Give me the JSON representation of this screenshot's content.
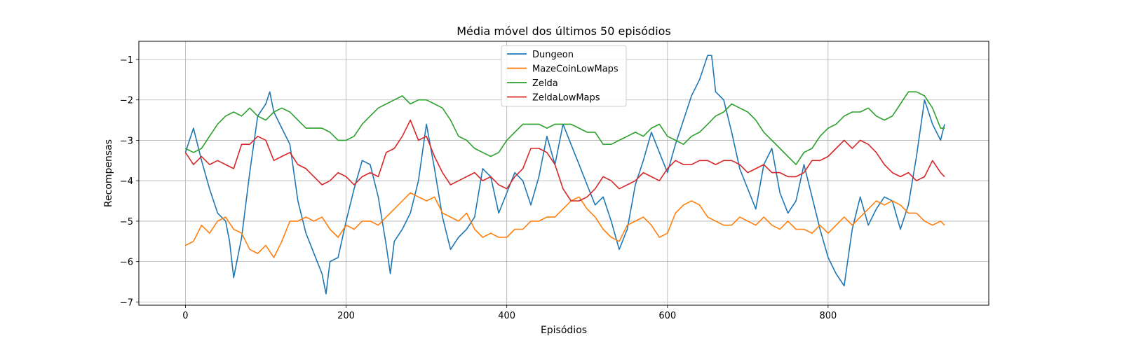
{
  "chart_data": {
    "type": "line",
    "title": "Média móvel dos últimos 50 episódios",
    "xlabel": "Episódios",
    "ylabel": "Recompensas",
    "xlim": [
      -58,
      1000
    ],
    "ylim": [
      -7.08,
      -0.55
    ],
    "xticks": [
      0,
      200,
      400,
      600,
      800
    ],
    "yticks": [
      -7,
      -6,
      -5,
      -4,
      -3,
      -2,
      -1
    ],
    "grid": true,
    "legend_position": "top-center",
    "series": [
      {
        "name": "Dungeon",
        "color": "#1f77b4",
        "x": [
          0,
          10,
          20,
          30,
          40,
          50,
          55,
          60,
          70,
          80,
          90,
          100,
          105,
          110,
          120,
          130,
          140,
          150,
          160,
          170,
          175,
          180,
          190,
          200,
          210,
          220,
          230,
          240,
          250,
          255,
          260,
          270,
          280,
          290,
          300,
          310,
          320,
          330,
          340,
          350,
          360,
          370,
          380,
          390,
          400,
          410,
          420,
          430,
          440,
          450,
          460,
          470,
          480,
          490,
          500,
          510,
          520,
          530,
          540,
          550,
          560,
          570,
          580,
          590,
          600,
          610,
          620,
          630,
          640,
          650,
          655,
          660,
          670,
          680,
          690,
          700,
          710,
          720,
          730,
          740,
          750,
          760,
          770,
          780,
          790,
          800,
          810,
          820,
          830,
          840,
          850,
          860,
          870,
          880,
          890,
          900,
          910,
          920,
          930,
          940,
          945
        ],
        "values": [
          -3.3,
          -2.7,
          -3.5,
          -4.2,
          -4.8,
          -5.0,
          -5.5,
          -6.4,
          -5.4,
          -3.8,
          -2.4,
          -2.1,
          -1.8,
          -2.3,
          -2.7,
          -3.1,
          -4.5,
          -5.3,
          -5.8,
          -6.3,
          -6.8,
          -6.0,
          -5.9,
          -5.0,
          -4.2,
          -3.5,
          -3.6,
          -4.4,
          -5.6,
          -6.3,
          -5.5,
          -5.2,
          -4.8,
          -4.0,
          -2.6,
          -3.7,
          -4.9,
          -5.7,
          -5.4,
          -5.2,
          -4.9,
          -3.7,
          -3.9,
          -4.8,
          -4.3,
          -3.8,
          -4.0,
          -4.6,
          -3.9,
          -2.9,
          -3.6,
          -2.6,
          -3.1,
          -3.6,
          -4.1,
          -4.6,
          -4.4,
          -5.0,
          -5.7,
          -5.2,
          -4.1,
          -3.5,
          -2.8,
          -3.3,
          -3.8,
          -3.1,
          -2.5,
          -1.9,
          -1.5,
          -0.9,
          -0.9,
          -1.8,
          -2.0,
          -2.8,
          -3.7,
          -4.2,
          -4.7,
          -3.6,
          -3.2,
          -4.3,
          -4.8,
          -4.5,
          -3.6,
          -4.4,
          -5.2,
          -5.9,
          -6.3,
          -6.6,
          -5.2,
          -4.4,
          -5.1,
          -4.7,
          -4.4,
          -4.5,
          -5.2,
          -4.6,
          -3.4,
          -2.0,
          -2.6,
          -3.0,
          -2.6
        ]
      },
      {
        "name": "MazeCoinLowMaps",
        "color": "#ff7f0e",
        "x": [
          0,
          10,
          20,
          30,
          40,
          50,
          60,
          70,
          80,
          90,
          100,
          110,
          120,
          130,
          140,
          150,
          160,
          170,
          180,
          190,
          200,
          210,
          220,
          230,
          240,
          250,
          260,
          270,
          280,
          290,
          300,
          310,
          320,
          330,
          340,
          350,
          360,
          370,
          380,
          390,
          400,
          410,
          420,
          430,
          440,
          450,
          460,
          470,
          480,
          490,
          500,
          510,
          520,
          530,
          540,
          550,
          560,
          570,
          580,
          590,
          600,
          610,
          620,
          630,
          640,
          650,
          660,
          670,
          680,
          690,
          700,
          710,
          720,
          730,
          740,
          750,
          760,
          770,
          780,
          790,
          800,
          810,
          820,
          830,
          840,
          850,
          860,
          870,
          880,
          890,
          900,
          910,
          920,
          930,
          940,
          945
        ],
        "values": [
          -5.6,
          -5.5,
          -5.1,
          -5.3,
          -5.0,
          -4.9,
          -5.2,
          -5.3,
          -5.7,
          -5.8,
          -5.6,
          -5.9,
          -5.5,
          -5.0,
          -5.0,
          -4.9,
          -5.0,
          -4.9,
          -5.2,
          -5.4,
          -5.1,
          -5.2,
          -5.0,
          -5.0,
          -5.1,
          -4.9,
          -4.7,
          -4.5,
          -4.3,
          -4.4,
          -4.5,
          -4.4,
          -4.8,
          -4.9,
          -5.0,
          -4.8,
          -5.2,
          -5.4,
          -5.3,
          -5.4,
          -5.4,
          -5.2,
          -5.2,
          -5.0,
          -5.0,
          -4.9,
          -4.9,
          -4.7,
          -4.5,
          -4.4,
          -4.7,
          -4.9,
          -5.2,
          -5.4,
          -5.5,
          -5.1,
          -5.0,
          -4.9,
          -5.1,
          -5.4,
          -5.3,
          -4.8,
          -4.6,
          -4.5,
          -4.6,
          -4.9,
          -5.0,
          -5.1,
          -5.1,
          -4.9,
          -5.0,
          -5.1,
          -4.9,
          -5.1,
          -5.2,
          -5.0,
          -5.2,
          -5.2,
          -5.3,
          -5.1,
          -5.3,
          -5.1,
          -4.9,
          -5.1,
          -4.9,
          -4.7,
          -4.5,
          -4.6,
          -4.5,
          -4.6,
          -4.8,
          -4.8,
          -5.0,
          -5.1,
          -5.0,
          -5.1
        ]
      },
      {
        "name": "Zelda",
        "color": "#2ca02c",
        "x": [
          0,
          10,
          20,
          30,
          40,
          50,
          60,
          70,
          80,
          90,
          100,
          110,
          120,
          130,
          140,
          150,
          160,
          170,
          180,
          190,
          200,
          210,
          220,
          230,
          240,
          250,
          260,
          270,
          280,
          290,
          300,
          310,
          320,
          330,
          340,
          350,
          360,
          370,
          380,
          390,
          400,
          410,
          420,
          430,
          440,
          450,
          460,
          470,
          480,
          490,
          500,
          510,
          520,
          530,
          540,
          550,
          560,
          570,
          580,
          590,
          600,
          610,
          620,
          630,
          640,
          650,
          660,
          670,
          680,
          690,
          700,
          710,
          720,
          730,
          740,
          750,
          760,
          770,
          780,
          790,
          800,
          810,
          820,
          830,
          840,
          850,
          860,
          870,
          880,
          890,
          900,
          910,
          920,
          930,
          940,
          945
        ],
        "values": [
          -3.2,
          -3.3,
          -3.2,
          -2.9,
          -2.6,
          -2.4,
          -2.3,
          -2.4,
          -2.2,
          -2.4,
          -2.5,
          -2.3,
          -2.2,
          -2.3,
          -2.5,
          -2.7,
          -2.7,
          -2.7,
          -2.8,
          -3.0,
          -3.0,
          -2.9,
          -2.6,
          -2.4,
          -2.2,
          -2.1,
          -2.0,
          -1.9,
          -2.1,
          -2.0,
          -2.0,
          -2.1,
          -2.2,
          -2.5,
          -2.9,
          -3.0,
          -3.2,
          -3.3,
          -3.4,
          -3.3,
          -3.0,
          -2.8,
          -2.6,
          -2.6,
          -2.6,
          -2.7,
          -2.6,
          -2.6,
          -2.6,
          -2.7,
          -2.8,
          -2.8,
          -3.1,
          -3.1,
          -3.0,
          -2.9,
          -2.8,
          -2.9,
          -2.7,
          -2.6,
          -2.9,
          -3.0,
          -3.1,
          -2.9,
          -2.8,
          -2.6,
          -2.4,
          -2.3,
          -2.1,
          -2.2,
          -2.3,
          -2.5,
          -2.8,
          -3.0,
          -3.2,
          -3.4,
          -3.6,
          -3.3,
          -3.2,
          -2.9,
          -2.7,
          -2.6,
          -2.4,
          -2.3,
          -2.3,
          -2.2,
          -2.4,
          -2.5,
          -2.4,
          -2.1,
          -1.8,
          -1.8,
          -1.9,
          -2.2,
          -2.7,
          -2.7
        ]
      },
      {
        "name": "ZeldaLowMaps",
        "color": "#d62728",
        "x": [
          0,
          10,
          20,
          30,
          40,
          50,
          60,
          70,
          80,
          90,
          100,
          110,
          120,
          130,
          140,
          150,
          160,
          170,
          180,
          190,
          200,
          210,
          220,
          230,
          240,
          250,
          260,
          270,
          280,
          290,
          300,
          310,
          320,
          330,
          340,
          350,
          360,
          370,
          380,
          390,
          400,
          410,
          420,
          430,
          440,
          450,
          460,
          470,
          480,
          490,
          500,
          510,
          520,
          530,
          540,
          550,
          560,
          570,
          580,
          590,
          600,
          610,
          620,
          630,
          640,
          650,
          660,
          670,
          680,
          690,
          700,
          710,
          720,
          730,
          740,
          750,
          760,
          770,
          780,
          790,
          800,
          810,
          820,
          830,
          840,
          850,
          860,
          870,
          880,
          890,
          900,
          910,
          920,
          930,
          940,
          945
        ],
        "values": [
          -3.3,
          -3.6,
          -3.4,
          -3.6,
          -3.5,
          -3.6,
          -3.7,
          -3.1,
          -3.1,
          -2.9,
          -3.0,
          -3.5,
          -3.4,
          -3.3,
          -3.6,
          -3.7,
          -3.9,
          -4.1,
          -4.0,
          -3.8,
          -3.9,
          -4.1,
          -3.9,
          -3.8,
          -3.9,
          -3.3,
          -3.2,
          -2.9,
          -2.5,
          -3.0,
          -2.9,
          -3.4,
          -3.8,
          -4.1,
          -4.0,
          -3.9,
          -3.8,
          -4.0,
          -3.9,
          -4.1,
          -4.2,
          -3.9,
          -3.7,
          -3.2,
          -3.2,
          -3.3,
          -3.6,
          -4.2,
          -4.5,
          -4.5,
          -4.4,
          -4.2,
          -3.9,
          -4.0,
          -4.2,
          -4.1,
          -4.0,
          -3.8,
          -3.9,
          -4.0,
          -3.7,
          -3.5,
          -3.6,
          -3.6,
          -3.5,
          -3.5,
          -3.6,
          -3.5,
          -3.5,
          -3.6,
          -3.8,
          -3.7,
          -3.6,
          -3.8,
          -3.8,
          -3.9,
          -3.9,
          -3.8,
          -3.5,
          -3.5,
          -3.4,
          -3.2,
          -3.0,
          -3.2,
          -3.0,
          -3.1,
          -3.3,
          -3.6,
          -3.8,
          -3.9,
          -3.8,
          -4.0,
          -3.9,
          -3.5,
          -3.8,
          -3.9
        ]
      }
    ]
  }
}
